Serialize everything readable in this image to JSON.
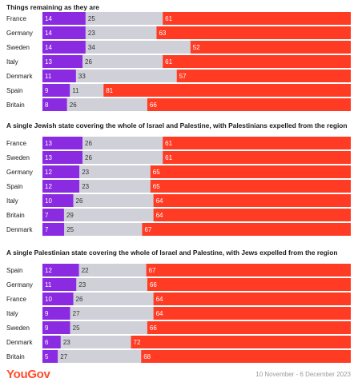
{
  "chart_data": [
    {
      "type": "bar",
      "stacked": true,
      "horizontal": true,
      "title": "Things remaining as they are",
      "categories": [
        "France",
        "Germany",
        "Sweden",
        "Italy",
        "Denmark",
        "Spain",
        "Britain"
      ],
      "series": [
        {
          "values": [
            14,
            14,
            14,
            13,
            11,
            9,
            8
          ],
          "color": "#8a2be2"
        },
        {
          "values": [
            25,
            23,
            34,
            26,
            33,
            11,
            26
          ],
          "color": "#cfd0d8"
        },
        {
          "values": [
            61,
            63,
            52,
            61,
            57,
            81,
            66
          ],
          "color": "#ff3b24"
        }
      ]
    },
    {
      "type": "bar",
      "stacked": true,
      "horizontal": true,
      "title": "A single Jewish state covering the whole of Israel and Palestine, with Palestinians expelled from the region",
      "categories": [
        "France",
        "Sweden",
        "Germany",
        "Spain",
        "Italy",
        "Britain",
        "Denmark"
      ],
      "series": [
        {
          "values": [
            13,
            13,
            12,
            12,
            10,
            7,
            7
          ],
          "color": "#8a2be2"
        },
        {
          "values": [
            26,
            26,
            23,
            23,
            26,
            29,
            25
          ],
          "color": "#cfd0d8"
        },
        {
          "values": [
            61,
            61,
            65,
            65,
            64,
            64,
            67
          ],
          "color": "#ff3b24"
        }
      ]
    },
    {
      "type": "bar",
      "stacked": true,
      "horizontal": true,
      "title": "A single Palestinian state covering the whole of Israel and Palestine, with Jews expelled from the region",
      "categories": [
        "Spain",
        "Germany",
        "France",
        "Italy",
        "Sweden",
        "Denmark",
        "Britain"
      ],
      "series": [
        {
          "values": [
            12,
            11,
            10,
            9,
            9,
            6,
            5
          ],
          "color": "#8a2be2"
        },
        {
          "values": [
            22,
            23,
            26,
            27,
            25,
            23,
            27
          ],
          "color": "#cfd0d8"
        },
        {
          "values": [
            67,
            66,
            64,
            64,
            66,
            72,
            68
          ],
          "color": "#ff3b24"
        }
      ]
    }
  ],
  "brand": "YouGov",
  "date_range": "10 November - 6 December 2023"
}
